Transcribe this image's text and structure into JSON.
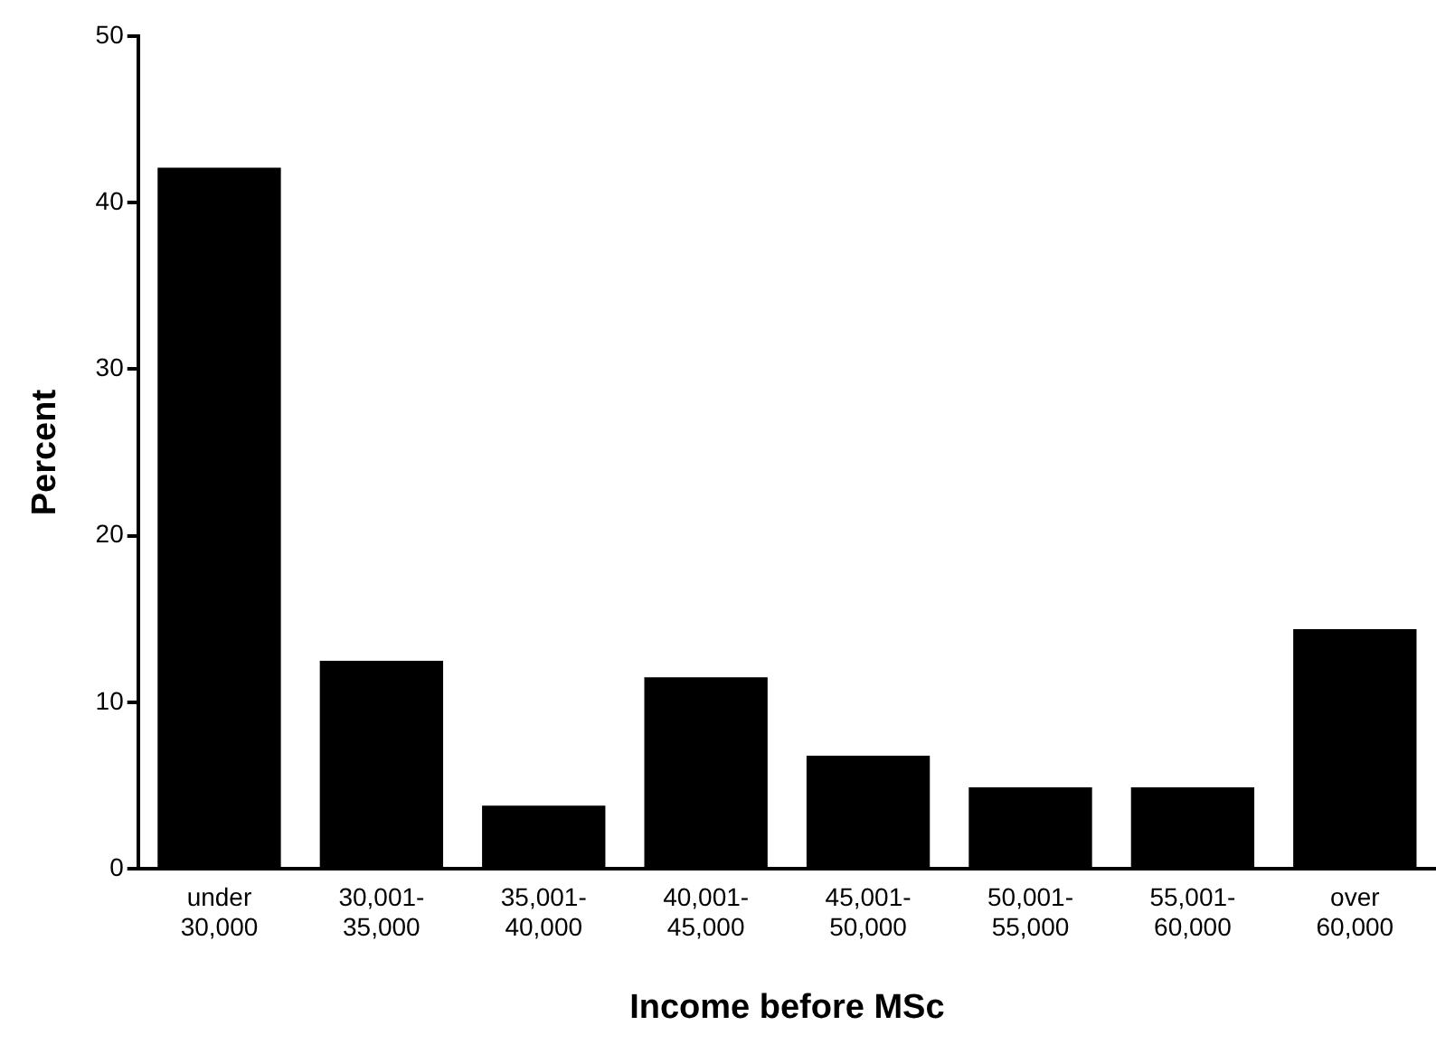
{
  "chart_data": {
    "type": "bar",
    "xlabel": "Income before MSc",
    "ylabel": "Percent",
    "categories": [
      "under 30,000",
      "30,001-35,000",
      "35,001-40,000",
      "40,001-45,000",
      "45,001-50,000",
      "50,001-55,000",
      "55,001-60,000",
      "over 60,000"
    ],
    "values": [
      42.1,
      12.5,
      3.8,
      11.5,
      6.8,
      4.9,
      4.9,
      14.4
    ],
    "color": "#000000",
    "ylim": [
      0,
      50
    ],
    "yticks": [
      0,
      10,
      20,
      30,
      40,
      50
    ],
    "grid": false,
    "legend": false
  }
}
